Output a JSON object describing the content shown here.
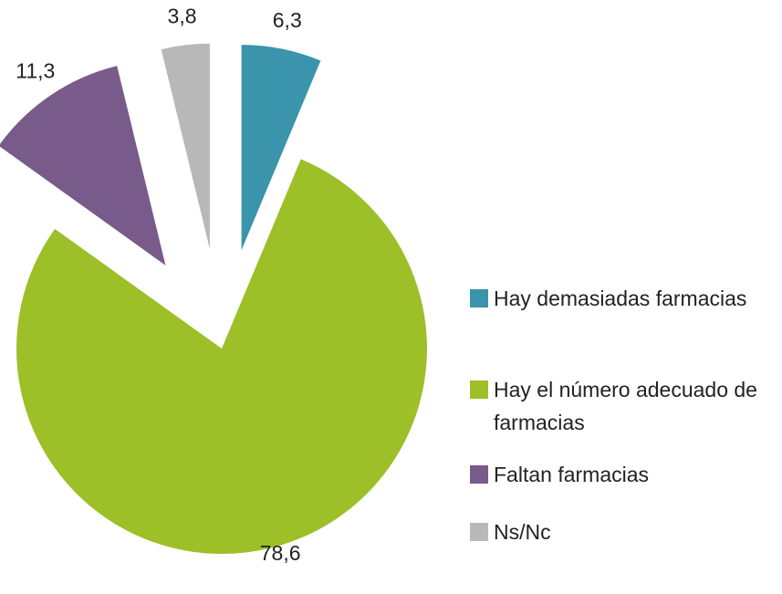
{
  "chart_data": {
    "type": "pie",
    "categories": [
      "Hay demasiadas farmacias",
      "Hay el número adecuado de farmacias",
      "Faltan farmacias",
      "Ns/Nc"
    ],
    "values": [
      6.3,
      78.6,
      11.3,
      3.8
    ],
    "value_labels": [
      "6,3",
      "78,6",
      "11,3",
      "3,8"
    ],
    "colors": [
      "#3a94ab",
      "#9dbf27",
      "#785a8b",
      "#b8b8b8"
    ],
    "legend": "right"
  }
}
